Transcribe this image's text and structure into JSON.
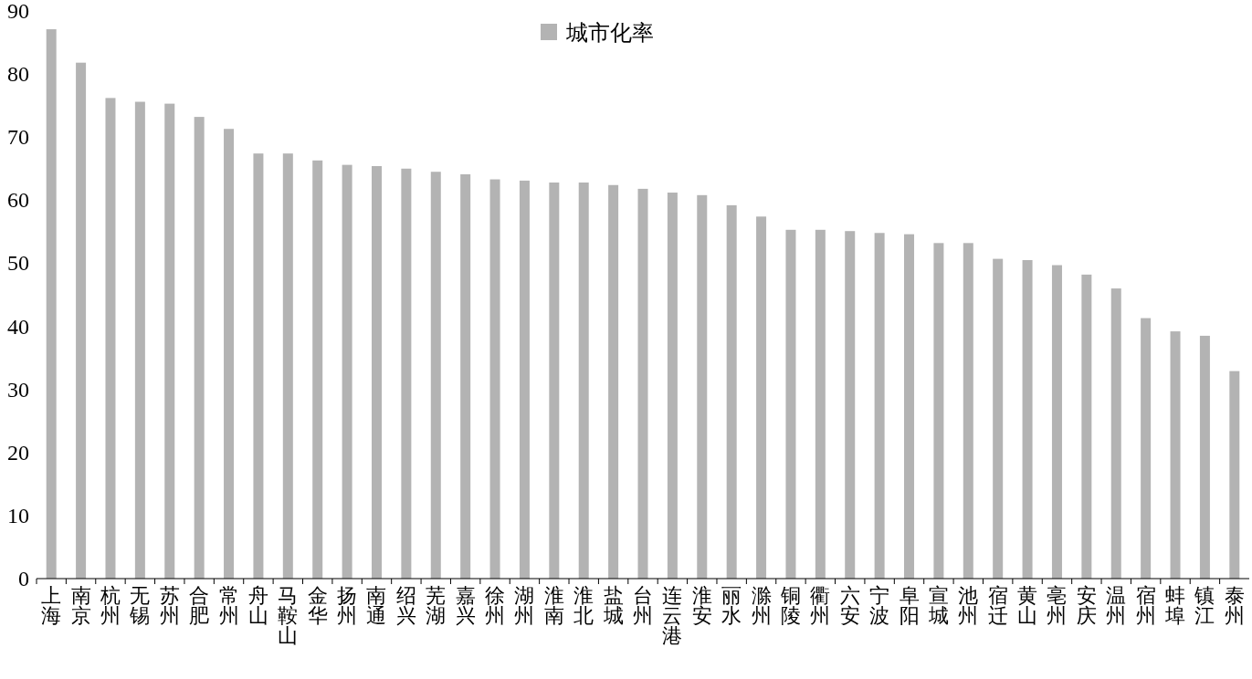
{
  "chart_data": {
    "type": "bar",
    "categories": [
      "上海",
      "南京",
      "杭州",
      "无锡",
      "苏州",
      "合肥",
      "常州",
      "舟山",
      "马鞍山",
      "金华",
      "扬州",
      "南通",
      "绍兴",
      "芜湖",
      "嘉兴",
      "徐州",
      "湖州",
      "淮南",
      "淮北",
      "盐城",
      "台州",
      "连云港",
      "淮安",
      "丽水",
      "滁州",
      "铜陵",
      "衢州",
      "六安",
      "宁波",
      "阜阳",
      "宣城",
      "池州",
      "宿迁",
      "黄山",
      "亳州",
      "安庆",
      "温州",
      "宿州",
      "蚌埠",
      "镇江",
      "泰州"
    ],
    "series": [
      {
        "name": "城市化率",
        "color": "#b3b3b3",
        "values": [
          87.1,
          81.8,
          76.2,
          75.6,
          75.3,
          73.2,
          71.3,
          67.4,
          67.4,
          66.3,
          65.6,
          65.4,
          65.0,
          64.5,
          64.1,
          63.3,
          63.1,
          62.8,
          62.8,
          62.4,
          61.8,
          61.2,
          60.8,
          59.2,
          57.4,
          55.3,
          55.3,
          55.1,
          54.8,
          54.6,
          53.2,
          53.2,
          50.7,
          50.5,
          49.7,
          48.2,
          46.0,
          41.3,
          39.2,
          38.5,
          32.9
        ]
      }
    ],
    "ylim": [
      0,
      90
    ],
    "yticks": [
      0,
      10,
      20,
      30,
      40,
      50,
      60,
      70,
      80,
      90
    ],
    "grid": false,
    "legend": "top"
  }
}
